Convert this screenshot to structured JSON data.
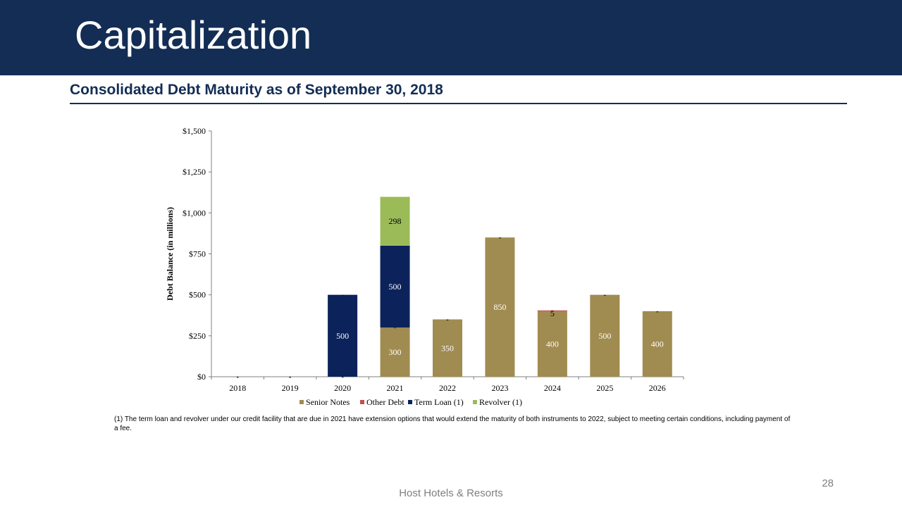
{
  "slide": {
    "title": "Capitalization",
    "subtitle": "Consolidated Debt Maturity as of September 30, 2018",
    "footnote": "(1) The term loan and revolver under our credit facility that are due in 2021 have extension options that would extend the maturity of both instruments to 2022, subject to meeting  certain conditions, including payment of a fee.",
    "footer": "Host Hotels & Resorts",
    "page_number": "28"
  },
  "colors": {
    "header_bg": "#132d55",
    "Senior Notes": "#a08c50",
    "Other Debt": "#c0504d",
    "Term Loan (1)": "#0c225a",
    "Revolver (1)": "#9bbb59"
  },
  "chart_data": {
    "type": "bar",
    "stacked": true,
    "ylabel": "Debt Balance (in millions)",
    "xlabel": "",
    "ylim": [
      0,
      1500
    ],
    "yticks": [
      0,
      250,
      500,
      750,
      1000,
      1250,
      1500
    ],
    "ytick_labels": [
      "$0",
      "$250",
      "$500",
      "$750",
      "$1,000",
      "$1,250",
      "$1,500"
    ],
    "categories": [
      "2018",
      "2019",
      "2020",
      "2021",
      "2022",
      "2023",
      "2024",
      "2025",
      "2026"
    ],
    "series": [
      {
        "name": "Senior Notes",
        "values": [
          0,
          0,
          0,
          300,
          350,
          850,
          400,
          500,
          400
        ]
      },
      {
        "name": "Other Debt",
        "values": [
          0,
          0,
          0,
          0,
          0,
          0,
          5,
          0,
          0
        ]
      },
      {
        "name": "Term Loan (1)",
        "values": [
          0,
          0,
          500,
          500,
          0,
          0,
          0,
          0,
          0
        ]
      },
      {
        "name": "Revolver (1)",
        "values": [
          0,
          0,
          0,
          298,
          0,
          0,
          0,
          0,
          0
        ]
      }
    ],
    "zero_label": "-",
    "legend": "bottom",
    "grid": false
  }
}
